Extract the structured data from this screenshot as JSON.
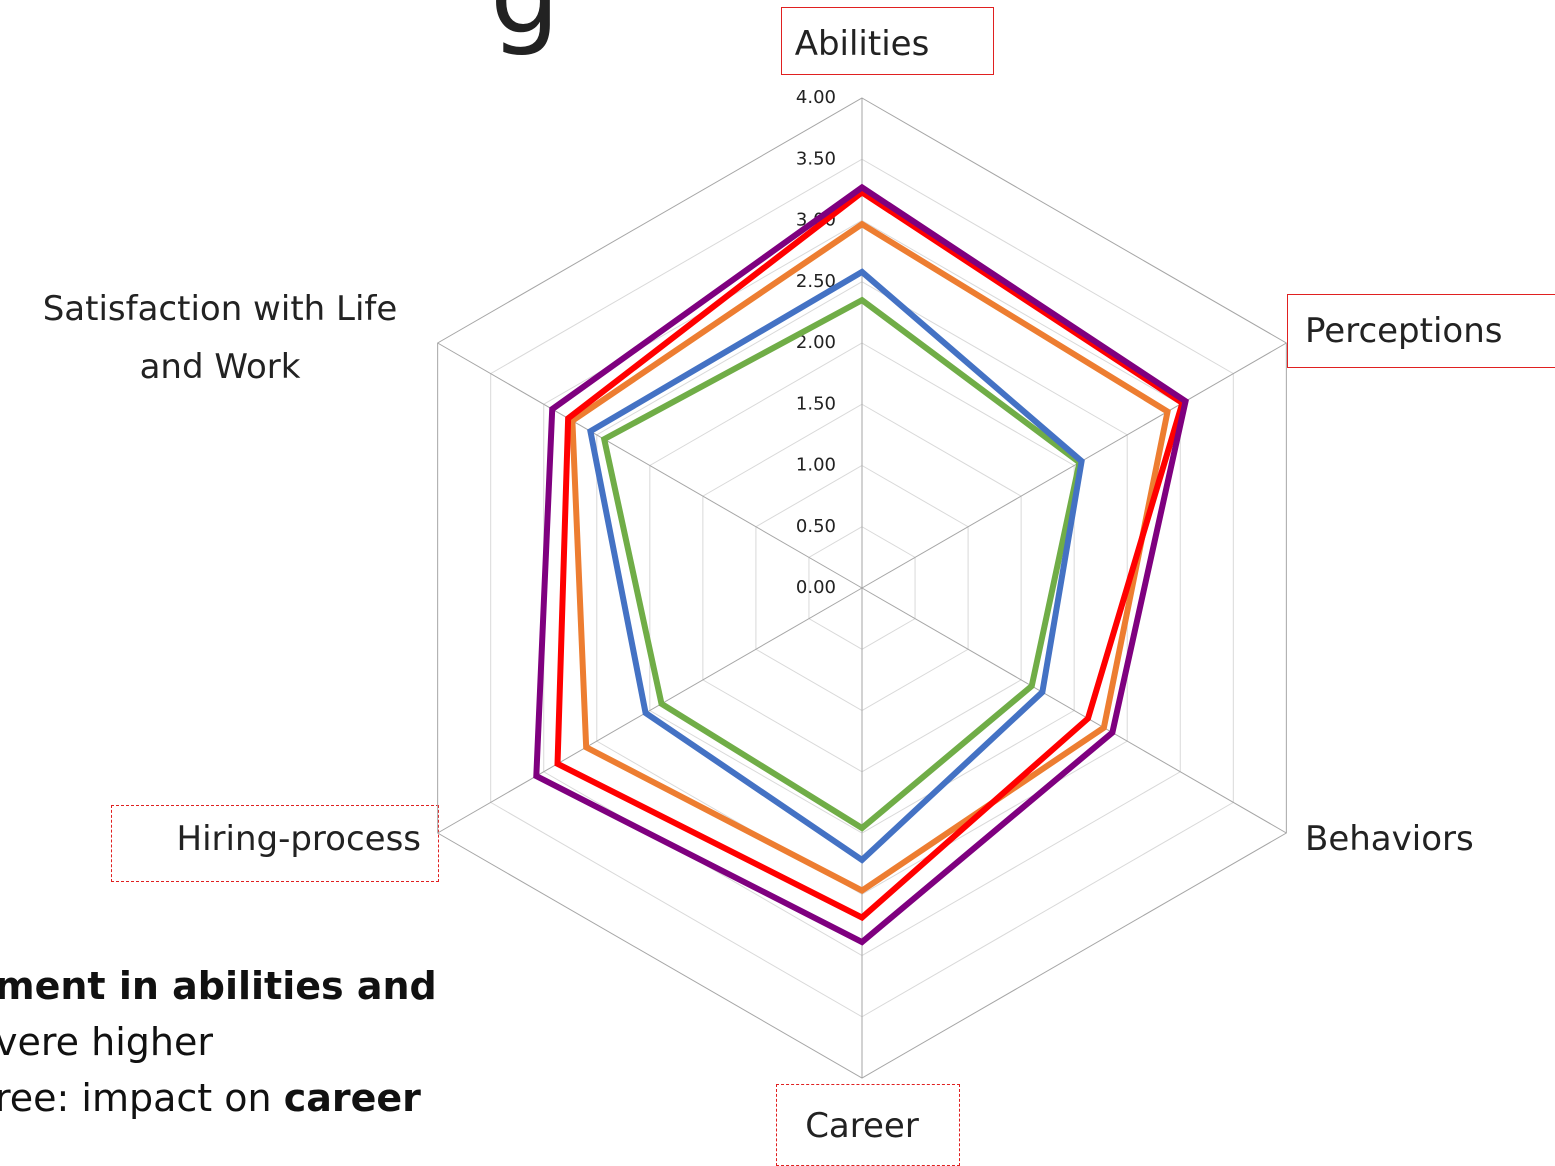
{
  "chart_data": {
    "type": "radar",
    "categories": [
      "Abilities",
      "Perceptions",
      "Behaviors",
      "Career",
      "Hiring-process",
      "Satisfaction with Life and Work"
    ],
    "series": [
      {
        "color": "#70ad47",
        "values": [
          2.35,
          2.05,
          1.6,
          1.96,
          1.89,
          2.43
        ]
      },
      {
        "color": "#4472c4",
        "values": [
          2.58,
          2.07,
          1.7,
          2.22,
          2.04,
          2.56
        ]
      },
      {
        "color": "#ed7d31",
        "values": [
          2.97,
          2.88,
          2.28,
          2.47,
          2.6,
          2.73
        ]
      },
      {
        "color": "#ff0000",
        "values": [
          3.23,
          3.02,
          2.13,
          2.69,
          2.87,
          2.77
        ]
      },
      {
        "color": "#7f007f",
        "values": [
          3.27,
          3.05,
          2.36,
          2.89,
          3.07,
          2.92
        ]
      }
    ],
    "ylim": [
      0,
      4
    ],
    "yticks": [
      {
        "value": 0,
        "label": "0.00"
      },
      {
        "value": 0.5,
        "label": "0.50"
      },
      {
        "value": 1,
        "label": "1.00"
      },
      {
        "value": 1.5,
        "label": "1.50"
      },
      {
        "value": 2,
        "label": "2.00"
      },
      {
        "value": 2.5,
        "label": "2.50"
      },
      {
        "value": 3,
        "label": "3.00"
      },
      {
        "value": 3.5,
        "label": "3.50"
      },
      {
        "value": 4,
        "label": "4.00"
      }
    ],
    "grid": true
  },
  "slide": {
    "title_fragment": "g",
    "lines": [
      "ment in abilities and",
      "vere higher",
      "ree: impact on ",
      "career"
    ]
  }
}
